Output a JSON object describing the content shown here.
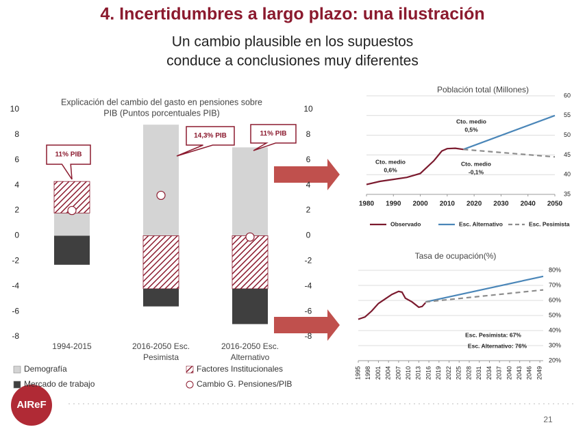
{
  "title": "4. Incertidumbres a largo plazo: una ilustración",
  "subtitle": [
    "Un cambio plausible en los supuestos",
    "conduce a conclusiones muy diferentes"
  ],
  "footer": {
    "logo": "AIReF",
    "page": "21"
  },
  "chart_data": [
    {
      "type": "bar",
      "stacked": true,
      "title": [
        "Explicación del cambio del gasto en pensiones sobre",
        "PIB (Puntos porcentuales PIB)"
      ],
      "categories": [
        [
          "1994-2015"
        ],
        [
          "2016-2050 Esc.",
          "Pesimista"
        ],
        [
          "2016-2050 Esc.",
          "Alternativo"
        ]
      ],
      "series": [
        {
          "name": "Demografía",
          "color": "#d4d4d4",
          "values": [
            1.8,
            8.8,
            7.0
          ]
        },
        {
          "name": "Factores Institucionales",
          "color": "#8b1a2e",
          "hatch": true,
          "values": [
            2.5,
            -4.2,
            -4.2
          ]
        },
        {
          "name": "Mercado de trabajo",
          "color": "#3f3f3f",
          "values": [
            -2.3,
            -1.4,
            -2.8
          ]
        },
        {
          "name": "Cambio G. Pensiones/PIB",
          "color": "#8b1a2e",
          "marker": "circle",
          "values": [
            2.0,
            3.2,
            -0.1
          ]
        }
      ],
      "annotations": [
        "11% PIB",
        "14,3% PIB",
        "11% PIB"
      ],
      "ylim": [
        -8,
        10
      ],
      "yticks": [
        -8,
        -6,
        -4,
        -2,
        0,
        2,
        4,
        6,
        8,
        10
      ],
      "y2lim": [
        -8,
        10
      ],
      "y2ticks": [
        -8,
        -6,
        -4,
        -2,
        0,
        2,
        4,
        6,
        8,
        10
      ]
    },
    {
      "type": "line",
      "title": "Población total (Millones)",
      "series": [
        {
          "name": "Observado",
          "color": "#7b1a2e",
          "x": [
            1980,
            1985,
            1990,
            1995,
            2000,
            2005,
            2008,
            2010,
            2013,
            2016
          ],
          "values": [
            37.5,
            38.3,
            38.8,
            39.3,
            40.3,
            43.5,
            46.0,
            46.6,
            46.7,
            46.4
          ]
        },
        {
          "name": "Esc. Alternativo",
          "color": "#4a86b8",
          "x": [
            2016,
            2050
          ],
          "values": [
            46.4,
            55.0
          ]
        },
        {
          "name": "Esc. Pesimista",
          "color": "#8c8c8c",
          "dash": true,
          "x": [
            2016,
            2050
          ],
          "values": [
            46.4,
            44.5
          ]
        }
      ],
      "annotations": [
        [
          "Cto. medio",
          "0,6%"
        ],
        [
          "Cto. medio",
          "0,5%"
        ],
        [
          "Cto. medio",
          "-0,1%"
        ]
      ],
      "xlim": [
        1980,
        2050
      ],
      "xticks": [
        1980,
        1990,
        2000,
        2010,
        2020,
        2030,
        2040,
        2050
      ],
      "ylim": [
        35,
        60
      ],
      "yticks": [
        35,
        40,
        45,
        50,
        55,
        60
      ],
      "grid": true,
      "legend": "bottom"
    },
    {
      "type": "line",
      "title": "Tasa de ocupación(%)",
      "series": [
        {
          "color": "#7b1a2e",
          "x": [
            1995,
            1997,
            1999,
            2001,
            2003,
            2005,
            2007,
            2008,
            2009,
            2011,
            2013,
            2014,
            2015
          ],
          "values": [
            47.5,
            49,
            53,
            58,
            61,
            64,
            66,
            65.5,
            61.5,
            59,
            55.5,
            56,
            58.5
          ]
        },
        {
          "color": "#4a86b8",
          "x": [
            2015,
            2050
          ],
          "values": [
            59,
            76
          ]
        },
        {
          "color": "#8c8c8c",
          "dash": true,
          "x": [
            2015,
            2050
          ],
          "values": [
            59,
            67
          ]
        }
      ],
      "annotations": [
        [
          "Esc. Pesimista: 67%"
        ],
        [
          "Esc. Alternativo: 76%"
        ]
      ],
      "xlim": [
        1995,
        2050
      ],
      "xticks": [
        1995,
        1998,
        2001,
        2004,
        2007,
        2010,
        2013,
        2016,
        2019,
        2022,
        2025,
        2028,
        2031,
        2034,
        2037,
        2040,
        2043,
        2046,
        2049
      ],
      "ylim": [
        20,
        80
      ],
      "yticks": [
        {
          "value": 20,
          "label": "20%"
        },
        {
          "value": 30,
          "label": "30%"
        },
        {
          "value": 40,
          "label": "40%"
        },
        {
          "value": 50,
          "label": "50%"
        },
        {
          "value": 60,
          "label": "60%"
        },
        {
          "value": 70,
          "label": "70%"
        },
        {
          "value": 80,
          "label": "80%"
        }
      ],
      "grid": true
    }
  ]
}
